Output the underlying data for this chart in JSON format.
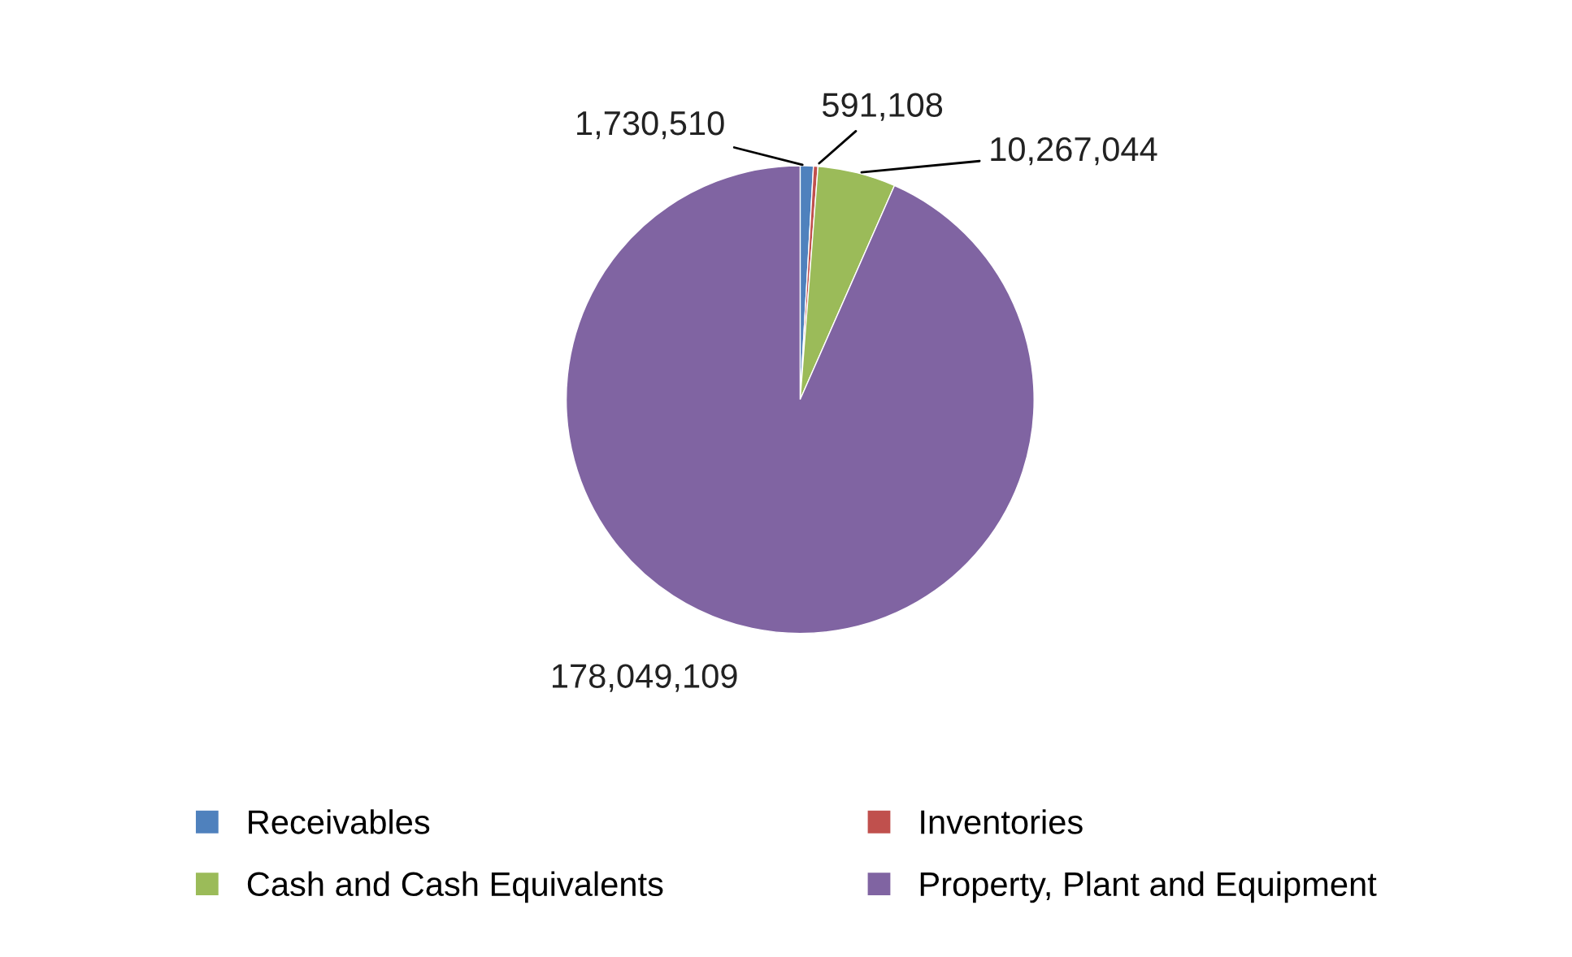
{
  "chart_data": {
    "type": "pie",
    "categories": [
      "Receivables",
      "Inventories",
      "Cash and Cash Equivalents",
      "Property, Plant and Equipment"
    ],
    "values": [
      1730510,
      591108,
      10267044,
      178049109
    ],
    "colors": [
      "#4f81bd",
      "#c0504d",
      "#9bbb59",
      "#8064a2"
    ],
    "value_labels": [
      "1,730,510",
      "591,108",
      "10,267,044",
      "178,049,109"
    ],
    "legend": "bottom"
  }
}
